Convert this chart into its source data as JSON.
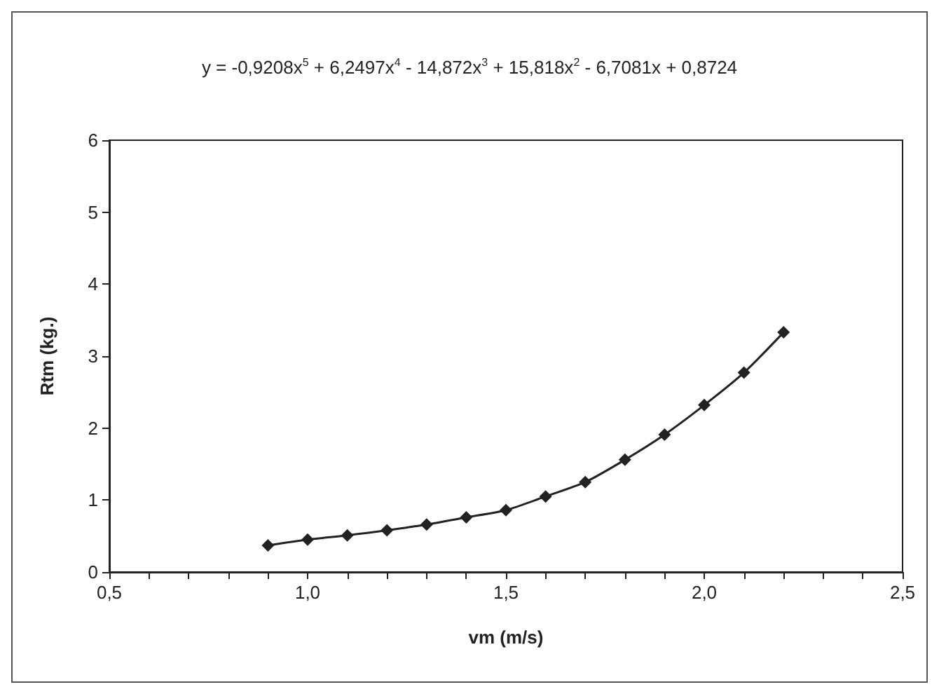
{
  "chart_data": {
    "type": "line",
    "xlabel": "vm (m/s)",
    "ylabel": "Rtm (kg.)",
    "annotations": [
      "y = -0,9208x$^{5}$ + 6,2497x$^{4}$ - 14,872x$^{3}$ + 15,818x$^{2}$ - 6,7081x + 0,8724"
    ],
    "x": [
      0.9,
      1.0,
      1.1,
      1.2,
      1.3,
      1.4,
      1.5,
      1.6,
      1.7,
      1.8,
      1.9,
      2.0,
      2.1,
      2.2
    ],
    "series": [
      {
        "color": "#222222",
        "values": [
          0.37,
          0.45,
          0.51,
          0.58,
          0.66,
          0.76,
          0.86,
          1.05,
          1.25,
          1.56,
          1.91,
          2.32,
          2.77,
          3.33
        ]
      }
    ],
    "xlim": [
      0.5,
      2.5
    ],
    "xticks": [
      {
        "value": 0.5,
        "label": "0,5"
      },
      {
        "value": 0.6,
        "label": null
      },
      {
        "value": 0.7,
        "label": null
      },
      {
        "value": 0.8,
        "label": null
      },
      {
        "value": 0.9,
        "label": null
      },
      {
        "value": 1.0,
        "label": "1,0"
      },
      {
        "value": 1.1,
        "label": null
      },
      {
        "value": 1.2,
        "label": null
      },
      {
        "value": 1.3,
        "label": null
      },
      {
        "value": 1.4,
        "label": null
      },
      {
        "value": 1.5,
        "label": "1,5"
      },
      {
        "value": 1.6,
        "label": null
      },
      {
        "value": 1.7,
        "label": null
      },
      {
        "value": 1.8,
        "label": null
      },
      {
        "value": 1.9,
        "label": null
      },
      {
        "value": 2.0,
        "label": "2,0"
      },
      {
        "value": 2.1,
        "label": null
      },
      {
        "value": 2.2,
        "label": null
      },
      {
        "value": 2.3,
        "label": null
      },
      {
        "value": 2.4,
        "label": null
      },
      {
        "value": 2.5,
        "label": "2,5"
      }
    ],
    "ylim": [
      0,
      6
    ],
    "yticks": [
      0,
      1,
      2,
      3,
      4,
      5,
      6
    ],
    "grid": false,
    "marker": "diamond",
    "line_style": "solid"
  }
}
